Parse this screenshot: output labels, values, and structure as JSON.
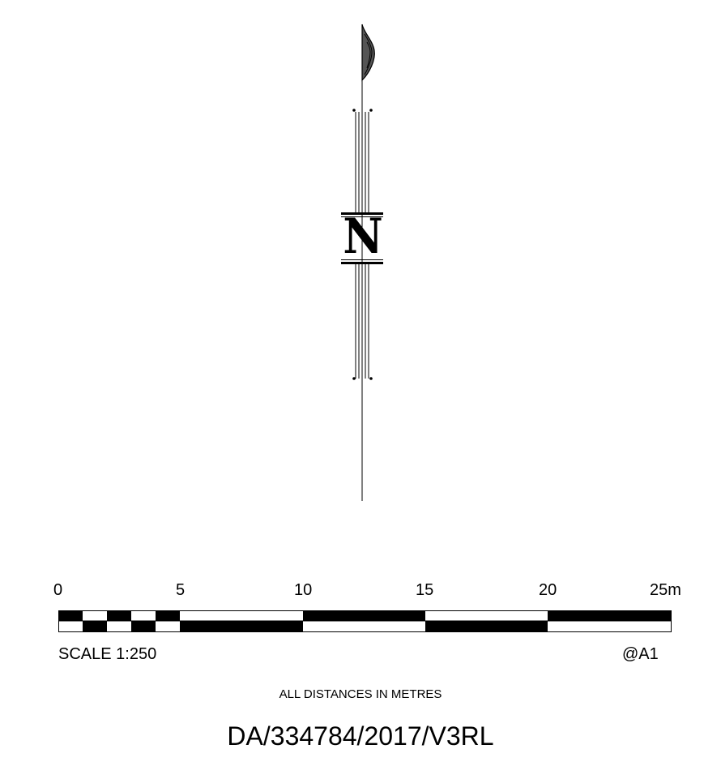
{
  "north_arrow": {
    "letter": "N"
  },
  "scale_bar": {
    "tick_labels": [
      "0",
      "5",
      "10",
      "15",
      "20",
      "25m"
    ],
    "scale_text": "SCALE 1:250",
    "paper_size": "@A1",
    "colors": {
      "fill": "#000000",
      "empty": "#ffffff"
    }
  },
  "notes": {
    "units": "ALL DISTANCES IN METRES"
  },
  "reference": {
    "code": "DA/334784/2017/V3RL"
  }
}
